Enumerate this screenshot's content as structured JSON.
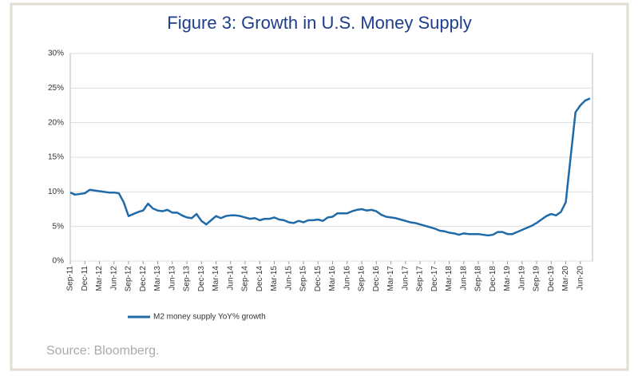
{
  "chart_data": {
    "type": "line",
    "title": "Figure 3:  Growth in U.S. Money Supply",
    "source": "Source: Bloomberg.",
    "categories": [
      "Sep-11",
      null,
      null,
      "Dec-11",
      null,
      null,
      "Mar-12",
      null,
      null,
      "Jun-12",
      null,
      null,
      "Sep-12",
      null,
      null,
      "Dec-12",
      null,
      null,
      "Mar-13",
      null,
      null,
      "Jun-13",
      null,
      null,
      "Sep-13",
      null,
      null,
      "Dec-13",
      null,
      null,
      "Mar-14",
      null,
      null,
      "Jun-14",
      null,
      null,
      "Sep-14",
      null,
      null,
      "Dec-14",
      null,
      null,
      "Mar-15",
      null,
      null,
      "Jun-15",
      null,
      null,
      "Sep-15",
      null,
      null,
      "Dec-15",
      null,
      null,
      "Mar-16",
      null,
      null,
      "Jun-16",
      null,
      null,
      "Sep-16",
      null,
      null,
      "Dec-16",
      null,
      null,
      "Mar-17",
      null,
      null,
      "Jun-17",
      null,
      null,
      "Sep-17",
      null,
      null,
      "Dec-17",
      null,
      null,
      "Mar-18",
      null,
      null,
      "Jun-18",
      null,
      null,
      "Sep-18",
      null,
      null,
      "Dec-18",
      null,
      null,
      "Mar-19",
      null,
      null,
      "Jun-19",
      null,
      null,
      "Sep-19",
      null,
      null,
      "Dec-19",
      null,
      null,
      "Mar-20",
      null,
      null,
      "Jun-20",
      null,
      null
    ],
    "series": [
      {
        "name": "M2 money supply YoY% growth",
        "color": "#1f6aa8",
        "values": [
          9.9,
          9.6,
          9.7,
          9.8,
          10.3,
          10.2,
          10.1,
          10.0,
          9.9,
          9.9,
          9.8,
          8.5,
          6.5,
          6.8,
          7.1,
          7.3,
          8.3,
          7.6,
          7.3,
          7.2,
          7.4,
          7.0,
          7.0,
          6.6,
          6.3,
          6.2,
          6.8,
          5.8,
          5.3,
          5.9,
          6.5,
          6.2,
          6.5,
          6.6,
          6.6,
          6.5,
          6.3,
          6.1,
          6.2,
          5.9,
          6.1,
          6.1,
          6.3,
          6.0,
          5.9,
          5.6,
          5.5,
          5.8,
          5.6,
          5.9,
          5.9,
          6.0,
          5.8,
          6.3,
          6.4,
          6.9,
          6.9,
          6.9,
          7.2,
          7.4,
          7.5,
          7.3,
          7.4,
          7.2,
          6.7,
          6.4,
          6.3,
          6.2,
          6.0,
          5.8,
          5.6,
          5.5,
          5.3,
          5.1,
          4.9,
          4.7,
          4.4,
          4.3,
          4.1,
          4.0,
          3.8,
          4.0,
          3.9,
          3.9,
          3.9,
          3.8,
          3.7,
          3.8,
          4.2,
          4.2,
          3.9,
          3.9,
          4.2,
          4.5,
          4.8,
          5.1,
          5.5,
          6.0,
          6.5,
          6.8,
          6.6,
          7.1,
          8.5,
          15.0,
          21.5,
          22.5,
          23.2,
          23.5
        ]
      }
    ],
    "ylim": [
      0,
      30
    ],
    "yticks": [
      {
        "value": 0,
        "label": "0%"
      },
      {
        "value": 5,
        "label": "5%"
      },
      {
        "value": 10,
        "label": "10%"
      },
      {
        "value": 15,
        "label": "15%"
      },
      {
        "value": 20,
        "label": "20%"
      },
      {
        "value": 25,
        "label": "25%"
      },
      {
        "value": 30,
        "label": "30%"
      }
    ],
    "grid": true
  }
}
